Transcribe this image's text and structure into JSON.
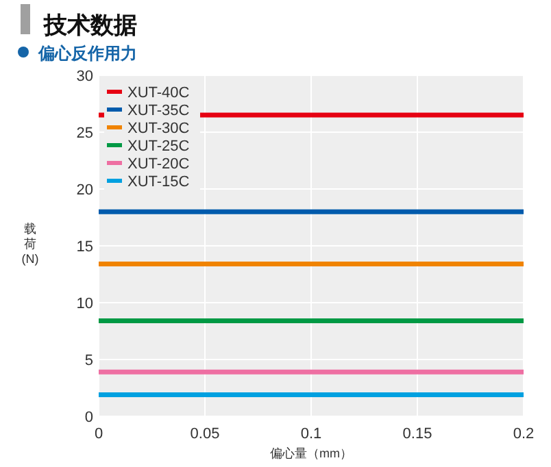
{
  "chart_data": {
    "type": "line",
    "title": "技术数据",
    "subtitle": "偏心反作用力",
    "xlabel": "偏心量（mm）",
    "ylabel": "载荷(N)",
    "x": [
      0,
      0.2
    ],
    "xlim": [
      0,
      0.2
    ],
    "xticks": [
      0,
      0.05,
      0.1,
      0.15,
      0.2
    ],
    "ylim": [
      0,
      30
    ],
    "yticks": [
      0,
      5,
      10,
      15,
      20,
      25,
      30
    ],
    "grid": true,
    "legend": "top left",
    "marker": "none",
    "line_style": "solid",
    "series": [
      {
        "name": "XUT-40C",
        "color": "#e60012",
        "values": [
          26.5,
          26.5
        ]
      },
      {
        "name": "XUT-35C",
        "color": "#005bac",
        "values": [
          18,
          18
        ]
      },
      {
        "name": "XUT-30C",
        "color": "#f08300",
        "values": [
          13.4,
          13.4
        ]
      },
      {
        "name": "XUT-25C",
        "color": "#009944",
        "values": [
          8.4,
          8.4
        ]
      },
      {
        "name": "XUT-20C",
        "color": "#ee6fa2",
        "values": [
          3.9,
          3.9
        ]
      },
      {
        "name": "XUT-15C",
        "color": "#00a0e0",
        "values": [
          1.9,
          1.9
        ]
      }
    ]
  }
}
